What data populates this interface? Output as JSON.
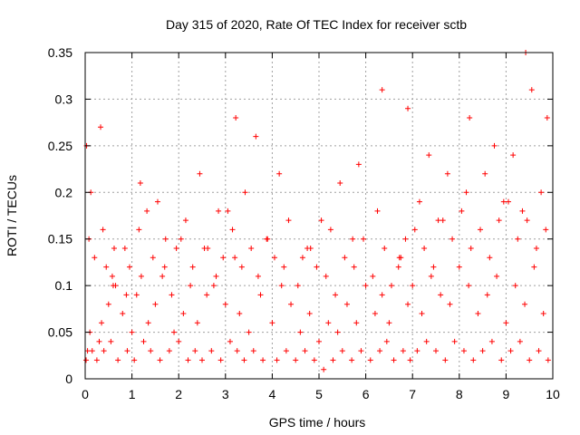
{
  "chart_data": {
    "type": "scatter",
    "title": "Day 315 of 2020, Rate Of TEC Index for receiver sctb",
    "xlabel": "GPS time / hours",
    "ylabel": "ROTI / TECUs",
    "xlim": [
      0,
      10
    ],
    "ylim": [
      0,
      0.35
    ],
    "x_ticks": [
      0,
      1,
      2,
      3,
      4,
      5,
      6,
      7,
      8,
      9,
      10
    ],
    "x_tick_labels": [
      "0",
      "1",
      "2",
      "3",
      "4",
      "5",
      "6",
      "7",
      "8",
      "9",
      "10"
    ],
    "y_ticks": [
      0,
      0.05,
      0.1,
      0.15,
      0.2,
      0.25,
      0.3,
      0.35
    ],
    "y_tick_labels": [
      "0",
      "0.05",
      "0.1",
      "0.15",
      "0.2",
      "0.25",
      "0.3",
      "0.35"
    ],
    "grid": true,
    "marker": "+",
    "color": "#ff0000",
    "series": [
      {
        "x": [
          0.05,
          0.1,
          0.3,
          0.35,
          0.5,
          0.6,
          0.8,
          1.0,
          1.1,
          1.2,
          1.35,
          1.5,
          1.7,
          1.9,
          2.1,
          2.25,
          2.4,
          2.6,
          2.8,
          3.0,
          3.2,
          3.3,
          3.5,
          3.75,
          4.0,
          4.2,
          4.4,
          4.6,
          4.8,
          5.0,
          5.2,
          5.4,
          5.6,
          5.8,
          6.0,
          6.2,
          6.35,
          6.5,
          6.7,
          6.9,
          7.0,
          7.2,
          7.4,
          7.6,
          7.8,
          8.0,
          8.2,
          8.4,
          8.6,
          8.8,
          9.0,
          9.2,
          9.4,
          9.6,
          9.8,
          0.02,
          0.15,
          0.25,
          0.4,
          0.55,
          0.7,
          0.9,
          1.05,
          1.25,
          1.4,
          1.6,
          1.8,
          2.0,
          2.2,
          2.35,
          2.5,
          2.7,
          2.9,
          3.1,
          3.25,
          3.4,
          3.6,
          3.8,
          4.1,
          4.3,
          4.5,
          4.7,
          4.9,
          5.1,
          5.3,
          5.5,
          5.7,
          5.9,
          6.1,
          6.3,
          6.45,
          6.6,
          6.8,
          6.95,
          7.1,
          7.3,
          7.5,
          7.7,
          7.9,
          8.1,
          8.3,
          8.5,
          8.7,
          8.9,
          9.1,
          9.3,
          9.5,
          9.7,
          9.9,
          0.08,
          0.2,
          0.45,
          0.65,
          0.85,
          1.15,
          1.45,
          1.65,
          1.85,
          2.05,
          2.3,
          2.55,
          2.75,
          2.95,
          3.15,
          3.35,
          3.55,
          3.7,
          3.9,
          4.05,
          4.25,
          4.55,
          4.75,
          4.95,
          5.15,
          5.35,
          5.55,
          5.75,
          5.95,
          6.15,
          6.4,
          6.55,
          6.75,
          6.85,
          7.05,
          7.25,
          7.45,
          7.65,
          7.85,
          8.05,
          8.25,
          8.45,
          8.65,
          8.85,
          9.05,
          9.25,
          9.45,
          9.65,
          9.85,
          0.12,
          0.38,
          0.62,
          0.95,
          1.32,
          1.72,
          2.15,
          2.62,
          3.05,
          3.42,
          3.88,
          4.35,
          4.82,
          5.25,
          5.72,
          6.25,
          6.72,
          7.15,
          7.55,
          8.15,
          8.55,
          8.95,
          9.35,
          9.75,
          0.03,
          0.33,
          0.58,
          0.88,
          1.18,
          1.55,
          1.95,
          2.45,
          2.85,
          3.22,
          3.65,
          4.15,
          4.65,
          5.05,
          5.45,
          5.85,
          6.35,
          6.9,
          7.35,
          7.75,
          8.22,
          8.75,
          9.15,
          9.42,
          9.55,
          9.88
        ],
        "y": [
          0.03,
          0.05,
          0.04,
          0.06,
          0.08,
          0.1,
          0.07,
          0.05,
          0.09,
          0.11,
          0.06,
          0.08,
          0.12,
          0.05,
          0.07,
          0.1,
          0.06,
          0.09,
          0.11,
          0.08,
          0.13,
          0.07,
          0.05,
          0.09,
          0.06,
          0.1,
          0.08,
          0.05,
          0.07,
          0.04,
          0.06,
          0.05,
          0.08,
          0.06,
          0.1,
          0.07,
          0.09,
          0.06,
          0.12,
          0.08,
          0.1,
          0.07,
          0.11,
          0.09,
          0.08,
          0.12,
          0.1,
          0.07,
          0.09,
          0.11,
          0.06,
          0.1,
          0.08,
          0.12,
          0.07,
          0.02,
          0.03,
          0.02,
          0.03,
          0.04,
          0.02,
          0.03,
          0.02,
          0.04,
          0.03,
          0.02,
          0.03,
          0.04,
          0.02,
          0.03,
          0.02,
          0.03,
          0.02,
          0.04,
          0.03,
          0.02,
          0.03,
          0.02,
          0.02,
          0.03,
          0.02,
          0.03,
          0.02,
          0.01,
          0.02,
          0.03,
          0.02,
          0.03,
          0.02,
          0.03,
          0.04,
          0.02,
          0.03,
          0.02,
          0.03,
          0.04,
          0.03,
          0.02,
          0.04,
          0.03,
          0.02,
          0.03,
          0.04,
          0.02,
          0.03,
          0.04,
          0.02,
          0.03,
          0.02,
          0.15,
          0.13,
          0.12,
          0.1,
          0.14,
          0.16,
          0.13,
          0.11,
          0.09,
          0.15,
          0.12,
          0.14,
          0.1,
          0.13,
          0.16,
          0.12,
          0.14,
          0.11,
          0.15,
          0.13,
          0.12,
          0.1,
          0.14,
          0.12,
          0.11,
          0.09,
          0.13,
          0.12,
          0.15,
          0.11,
          0.14,
          0.1,
          0.13,
          0.15,
          0.16,
          0.14,
          0.12,
          0.17,
          0.15,
          0.18,
          0.14,
          0.16,
          0.13,
          0.17,
          0.19,
          0.15,
          0.17,
          0.14,
          0.16,
          0.2,
          0.16,
          0.14,
          0.12,
          0.18,
          0.15,
          0.17,
          0.14,
          0.18,
          0.2,
          0.15,
          0.17,
          0.14,
          0.16,
          0.15,
          0.18,
          0.13,
          0.19,
          0.17,
          0.2,
          0.22,
          0.19,
          0.18,
          0.2,
          0.25,
          0.27,
          0.11,
          0.09,
          0.21,
          0.19,
          0.14,
          0.22,
          0.18,
          0.28,
          0.26,
          0.22,
          0.13,
          0.17,
          0.21,
          0.23,
          0.31,
          0.29,
          0.24,
          0.22,
          0.28,
          0.25,
          0.24,
          0.35,
          0.31,
          0.28
        ]
      }
    ]
  }
}
